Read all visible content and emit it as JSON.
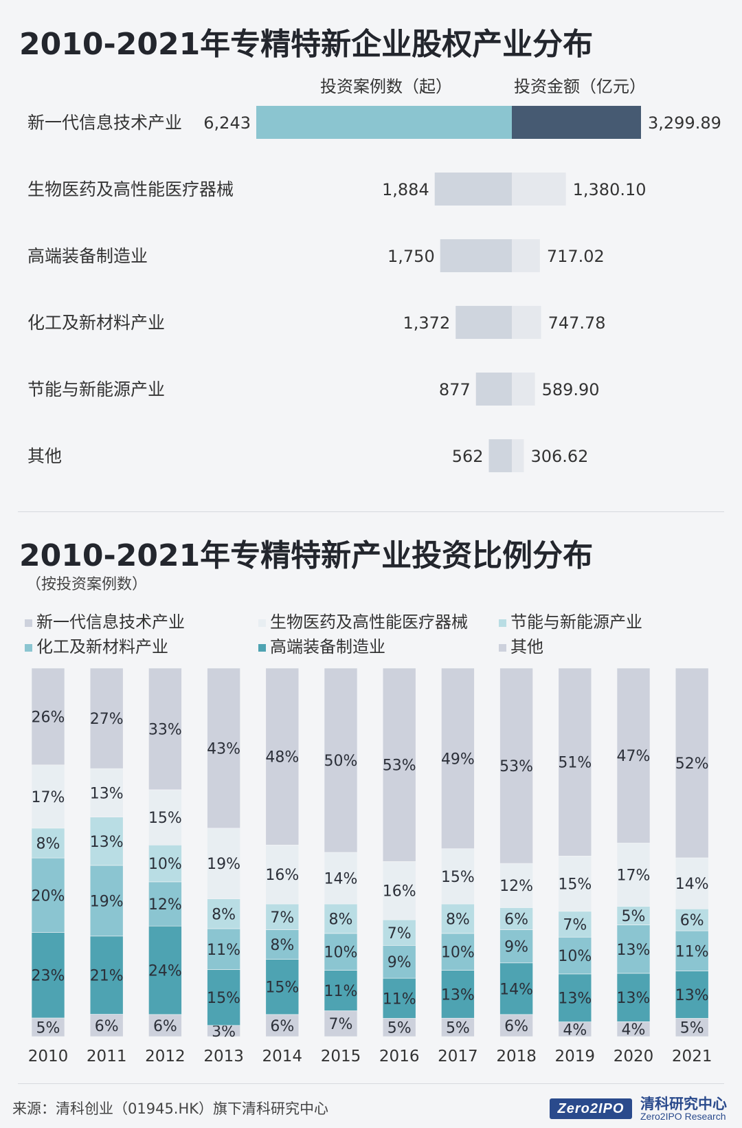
{
  "top_section": {
    "title": "2010-2021年专精特新企业股权产业分布",
    "col_count": "投资案例数（起）",
    "col_amount": "投资金额（亿元）"
  },
  "bottom_section": {
    "title": "2010-2021年专精特新产业投资比例分布",
    "subtitle": "（按投资案例数）"
  },
  "footer": {
    "source": "来源：清科创业（01945.HK）旗下清科研究中心",
    "logo_text": "Zero2IPO",
    "logo_cn": "清科研究中心",
    "logo_en": "Zero2IPO Research"
  },
  "colors": {
    "count_top": "#8bc5d0",
    "amount_top": "#465a72",
    "count_light": "#cfd5de",
    "amount_light": "#e5e8ed",
    "seg_xinyidai": "#cdd1dc",
    "seg_shengwu": "#e8eef2",
    "seg_jieneng": "#b9dde4",
    "seg_huagong": "#8bc5d1",
    "seg_gaoduan": "#4ea3b2",
    "seg_qita": "#cdd1dc"
  },
  "chart_data": [
    {
      "type": "bar",
      "orientation": "horizontal-diverging",
      "categories": [
        "新一代信息技术产业",
        "生物医药及高性能医疗器械",
        "高端装备制造业",
        "化工及新材料产业",
        "节能与新能源产业",
        "其他"
      ],
      "series": [
        {
          "name": "投资案例数（起）",
          "values": [
            6243,
            1884,
            1750,
            1372,
            877,
            562
          ],
          "labels": [
            "6,243",
            "1,884",
            "1,750",
            "1,372",
            "877",
            "562"
          ]
        },
        {
          "name": "投资金额（亿元）",
          "values": [
            3299.89,
            1380.1,
            717.02,
            747.78,
            589.9,
            306.62
          ],
          "labels": [
            "3,299.89",
            "1,380.10",
            "717.02",
            "747.78",
            "589.90",
            "306.62"
          ]
        }
      ]
    },
    {
      "type": "bar",
      "stacked": true,
      "percent": true,
      "categories": [
        "2010",
        "2011",
        "2012",
        "2013",
        "2014",
        "2015",
        "2016",
        "2017",
        "2018",
        "2019",
        "2020",
        "2021"
      ],
      "series": [
        {
          "name": "其他",
          "values": [
            5,
            6,
            6,
            3,
            6,
            7,
            5,
            5,
            6,
            4,
            4,
            5
          ]
        },
        {
          "name": "高端装备制造业",
          "values": [
            23,
            21,
            24,
            15,
            15,
            11,
            11,
            13,
            14,
            13,
            13,
            13
          ]
        },
        {
          "name": "化工及新材料产业",
          "values": [
            20,
            19,
            12,
            11,
            8,
            10,
            9,
            10,
            9,
            10,
            13,
            11
          ]
        },
        {
          "name": "节能与新能源产业",
          "values": [
            8,
            13,
            10,
            8,
            7,
            8,
            7,
            8,
            6,
            7,
            5,
            6
          ]
        },
        {
          "name": "生物医药及高性能医疗器械",
          "values": [
            17,
            13,
            15,
            19,
            16,
            14,
            16,
            15,
            12,
            15,
            17,
            14
          ]
        },
        {
          "name": "新一代信息技术产业",
          "values": [
            26,
            27,
            33,
            43,
            48,
            50,
            53,
            49,
            53,
            51,
            47,
            52
          ]
        }
      ],
      "legend": [
        {
          "name": "新一代信息技术产业",
          "color_key": "seg_xinyidai"
        },
        {
          "name": "生物医药及高性能医疗器械",
          "color_key": "seg_shengwu"
        },
        {
          "name": "节能与新能源产业",
          "color_key": "seg_jieneng"
        },
        {
          "name": "化工及新材料产业",
          "color_key": "seg_huagong"
        },
        {
          "name": "高端装备制造业",
          "color_key": "seg_gaoduan"
        },
        {
          "name": "其他",
          "color_key": "seg_qita"
        }
      ]
    }
  ]
}
